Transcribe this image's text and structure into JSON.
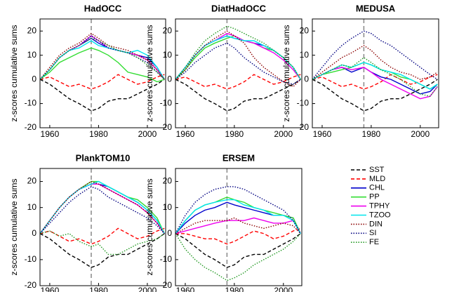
{
  "legend": [
    {
      "name": "SST",
      "color": "#000000",
      "style": "dashed"
    },
    {
      "name": "MLD",
      "color": "#ff0000",
      "style": "dashed"
    },
    {
      "name": "CHL",
      "color": "#0000cc",
      "style": "solid"
    },
    {
      "name": "PP",
      "color": "#33dd33",
      "style": "solid"
    },
    {
      "name": "TPHY",
      "color": "#ee00ee",
      "style": "solid"
    },
    {
      "name": "TZOO",
      "color": "#00e5ee",
      "style": "solid"
    },
    {
      "name": "DIN",
      "color": "#8b0000",
      "style": "dotted"
    },
    {
      "name": "SI",
      "color": "#000080",
      "style": "dotted"
    },
    {
      "name": "FE",
      "color": "#229922",
      "style": "dotted"
    }
  ],
  "chart_data": [
    {
      "type": "line",
      "title": "HadOCC",
      "ylabel": "z-scores cumulative sums",
      "x": [
        1956,
        1960,
        1964,
        1968,
        1972,
        1977,
        1980,
        1984,
        1988,
        1992,
        1996,
        2000,
        2004,
        2007
      ],
      "xlim": [
        1956,
        2007.5
      ],
      "xticks": [
        1960,
        1980,
        2000
      ],
      "ylim": [
        -20,
        25
      ],
      "yticks": [
        -20,
        -10,
        0,
        10,
        20
      ],
      "vline": 1977,
      "series": [
        {
          "values": [
            0,
            -2,
            -5,
            -8,
            -10,
            -13,
            -12,
            -9,
            -8,
            -8,
            -6,
            -4,
            -2,
            0
          ]
        },
        {
          "values": [
            0,
            1,
            -1,
            -3,
            -2,
            -4,
            -3,
            -1,
            2,
            0,
            -2,
            -1,
            1,
            2
          ]
        },
        {
          "values": [
            0,
            4,
            9,
            12,
            14,
            17,
            15,
            13,
            12,
            11,
            10,
            9,
            5,
            0
          ]
        },
        {
          "values": [
            0,
            3,
            7,
            9,
            11,
            13,
            12,
            10,
            7,
            3,
            2,
            1,
            -1,
            0
          ]
        },
        {
          "values": [
            0,
            4,
            9,
            12,
            14,
            18,
            16,
            13,
            12,
            11,
            10,
            8,
            4,
            0
          ]
        },
        {
          "values": [
            0,
            4,
            9,
            12,
            13,
            16,
            14,
            13,
            12,
            11,
            12,
            10,
            5,
            0
          ]
        },
        {
          "values": [
            0,
            5,
            10,
            13,
            15,
            19,
            17,
            14,
            13,
            12,
            10,
            8,
            4,
            0
          ]
        },
        {
          "values": [
            0,
            4,
            9,
            12,
            14,
            18,
            16,
            13,
            12,
            11,
            9,
            7,
            3,
            0
          ]
        },
        {
          "values": [
            0,
            4,
            9,
            12,
            14,
            17,
            16,
            14,
            12,
            11,
            9,
            6,
            3,
            0
          ]
        }
      ]
    },
    {
      "type": "line",
      "title": "DiatHadOCC",
      "ylabel": "z-scores cumulative sums",
      "x": [
        1956,
        1960,
        1964,
        1968,
        1972,
        1977,
        1980,
        1984,
        1988,
        1992,
        1996,
        2000,
        2004,
        2007
      ],
      "xlim": [
        1956,
        2007.5
      ],
      "xticks": [
        1960,
        1980,
        2000
      ],
      "ylim": [
        -20,
        25
      ],
      "yticks": [
        -20,
        -10,
        0,
        10,
        20
      ],
      "vline": 1977,
      "series": [
        {
          "values": [
            0,
            -2,
            -5,
            -8,
            -10,
            -13,
            -12,
            -9,
            -8,
            -8,
            -6,
            -4,
            -2,
            0
          ]
        },
        {
          "values": [
            0,
            1,
            -1,
            -3,
            -2,
            -4,
            -3,
            -1,
            2,
            0,
            -2,
            -1,
            1,
            2
          ]
        },
        {
          "values": [
            0,
            5,
            10,
            14,
            16,
            18,
            17,
            16,
            15,
            14,
            12,
            9,
            5,
            0
          ]
        },
        {
          "values": [
            0,
            4,
            9,
            13,
            15,
            17,
            18,
            16,
            15,
            13,
            12,
            9,
            5,
            0
          ]
        },
        {
          "values": [
            0,
            5,
            10,
            14,
            16,
            19,
            18,
            16,
            15,
            13,
            11,
            8,
            4,
            0
          ]
        },
        {
          "values": [
            0,
            5,
            10,
            14,
            16,
            18,
            17,
            16,
            16,
            14,
            12,
            9,
            5,
            0
          ]
        },
        {
          "values": [
            0,
            4,
            10,
            14,
            17,
            20,
            18,
            15,
            9,
            5,
            2,
            -1,
            -3,
            0
          ]
        },
        {
          "values": [
            0,
            3,
            7,
            10,
            13,
            15,
            13,
            9,
            6,
            3,
            1,
            -1,
            -2,
            0
          ]
        },
        {
          "values": [
            0,
            5,
            11,
            16,
            19,
            22,
            21,
            19,
            17,
            15,
            12,
            9,
            5,
            0
          ]
        }
      ]
    },
    {
      "type": "line",
      "title": "MEDUSA",
      "ylabel": "z-scores cumulative sums",
      "x": [
        1956,
        1960,
        1964,
        1968,
        1972,
        1977,
        1980,
        1984,
        1988,
        1992,
        1996,
        2000,
        2004,
        2007
      ],
      "xlim": [
        1956,
        2007.5
      ],
      "xticks": [
        1960,
        1980,
        2000
      ],
      "ylim": [
        -20,
        25
      ],
      "yticks": [
        -20,
        -10,
        0,
        10,
        20
      ],
      "vline": 1977,
      "series": [
        {
          "values": [
            0,
            -2,
            -5,
            -8,
            -10,
            -13,
            -12,
            -9,
            -8,
            -8,
            -6,
            -4,
            -2,
            0
          ]
        },
        {
          "values": [
            0,
            1,
            -1,
            -3,
            -2,
            -4,
            -3,
            -1,
            2,
            0,
            -2,
            -1,
            1,
            2
          ]
        },
        {
          "values": [
            0,
            2,
            4,
            5,
            3,
            5,
            3,
            1,
            0,
            -2,
            -4,
            -6,
            -5,
            -2
          ]
        },
        {
          "values": [
            0,
            2,
            3,
            4,
            5,
            7,
            6,
            4,
            3,
            1,
            0,
            -2,
            -4,
            -2
          ]
        },
        {
          "values": [
            0,
            2,
            4,
            5,
            4,
            5,
            3,
            0,
            -2,
            -4,
            -6,
            -8,
            -7,
            -3
          ]
        },
        {
          "values": [
            0,
            2,
            4,
            6,
            5,
            7,
            6,
            4,
            3,
            2,
            0,
            -2,
            -4,
            -2
          ]
        },
        {
          "values": [
            0,
            3,
            6,
            9,
            11,
            14,
            12,
            8,
            5,
            3,
            2,
            0,
            1,
            3
          ]
        },
        {
          "values": [
            0,
            5,
            10,
            14,
            17,
            20,
            19,
            16,
            14,
            11,
            8,
            5,
            2,
            0
          ]
        },
        {
          "values": [
            0,
            2,
            4,
            6,
            5,
            9,
            7,
            4,
            2,
            0,
            -3,
            -6,
            -7,
            -3
          ]
        }
      ]
    },
    {
      "type": "line",
      "title": "PlankTOM10",
      "ylabel": "z-scores cumulative sums",
      "x": [
        1956,
        1960,
        1964,
        1968,
        1972,
        1977,
        1980,
        1984,
        1988,
        1992,
        1996,
        2000,
        2004,
        2007
      ],
      "xlim": [
        1956,
        2007.5
      ],
      "xticks": [
        1960,
        1980,
        2000
      ],
      "ylim": [
        -20,
        25
      ],
      "yticks": [
        -20,
        -10,
        0,
        10,
        20
      ],
      "vline": 1977,
      "series": [
        {
          "values": [
            0,
            -2,
            -5,
            -8,
            -10,
            -13,
            -12,
            -9,
            -8,
            -8,
            -6,
            -4,
            -2,
            0
          ]
        },
        {
          "values": [
            0,
            1,
            -1,
            -3,
            -2,
            -4,
            -3,
            -1,
            2,
            0,
            -2,
            -1,
            1,
            2
          ]
        },
        {
          "values": [
            0,
            5,
            10,
            14,
            17,
            19,
            19,
            18,
            16,
            14,
            12,
            9,
            5,
            0
          ]
        },
        {
          "values": [
            0,
            5,
            10,
            14,
            17,
            20,
            20,
            18,
            16,
            14,
            13,
            10,
            6,
            0
          ]
        },
        {
          "values": [
            0,
            5,
            10,
            14,
            17,
            19,
            19,
            17,
            15,
            13,
            11,
            8,
            4,
            0
          ]
        },
        {
          "values": [
            0,
            5,
            10,
            14,
            17,
            19,
            20,
            18,
            16,
            14,
            12,
            9,
            5,
            0
          ]
        },
        {
          "values": [
            0,
            5,
            10,
            14,
            17,
            20,
            19,
            17,
            15,
            13,
            11,
            8,
            4,
            0
          ]
        },
        {
          "values": [
            0,
            4,
            8,
            12,
            15,
            18,
            17,
            14,
            12,
            10,
            8,
            6,
            3,
            0
          ]
        },
        {
          "values": [
            0,
            1,
            -1,
            0,
            -3,
            -5,
            -4,
            -8,
            -8,
            -6,
            -4,
            -3,
            -2,
            0
          ]
        }
      ]
    },
    {
      "type": "line",
      "title": "ERSEM",
      "ylabel": "z-scores cumulative sums",
      "x": [
        1956,
        1960,
        1964,
        1968,
        1972,
        1977,
        1980,
        1984,
        1988,
        1992,
        1996,
        2000,
        2004,
        2007
      ],
      "xlim": [
        1956,
        2007.5
      ],
      "xticks": [
        1960,
        1980,
        2000
      ],
      "ylim": [
        -20,
        25
      ],
      "yticks": [
        -20,
        -10,
        0,
        10,
        20
      ],
      "vline": 1977,
      "series": [
        {
          "values": [
            0,
            -2,
            -5,
            -8,
            -10,
            -13,
            -12,
            -9,
            -8,
            -8,
            -6,
            -4,
            -2,
            0
          ]
        },
        {
          "values": [
            0,
            0,
            -1,
            -2,
            -2,
            -4,
            -3,
            -1,
            1,
            0,
            -2,
            -1,
            1,
            2
          ]
        },
        {
          "values": [
            0,
            4,
            7,
            9,
            10,
            12,
            11,
            10,
            9,
            8,
            7,
            7,
            6,
            0
          ]
        },
        {
          "values": [
            0,
            5,
            9,
            11,
            12,
            14,
            13,
            12,
            10,
            9,
            8,
            7,
            6,
            0
          ]
        },
        {
          "values": [
            0,
            1,
            2,
            3,
            4,
            5,
            5,
            5,
            6,
            5,
            4,
            4,
            5,
            0
          ]
        },
        {
          "values": [
            0,
            5,
            9,
            11,
            12,
            13,
            13,
            11,
            10,
            9,
            7,
            7,
            5,
            0
          ]
        },
        {
          "values": [
            0,
            2,
            4,
            5,
            5,
            5,
            6,
            4,
            3,
            2,
            3,
            4,
            3,
            0
          ]
        },
        {
          "values": [
            0,
            7,
            12,
            15,
            17,
            18,
            18,
            17,
            15,
            13,
            11,
            9,
            5,
            0
          ]
        },
        {
          "values": [
            0,
            -6,
            -10,
            -13,
            -15,
            -18,
            -17,
            -15,
            -12,
            -10,
            -8,
            -6,
            -3,
            0
          ]
        }
      ]
    }
  ]
}
